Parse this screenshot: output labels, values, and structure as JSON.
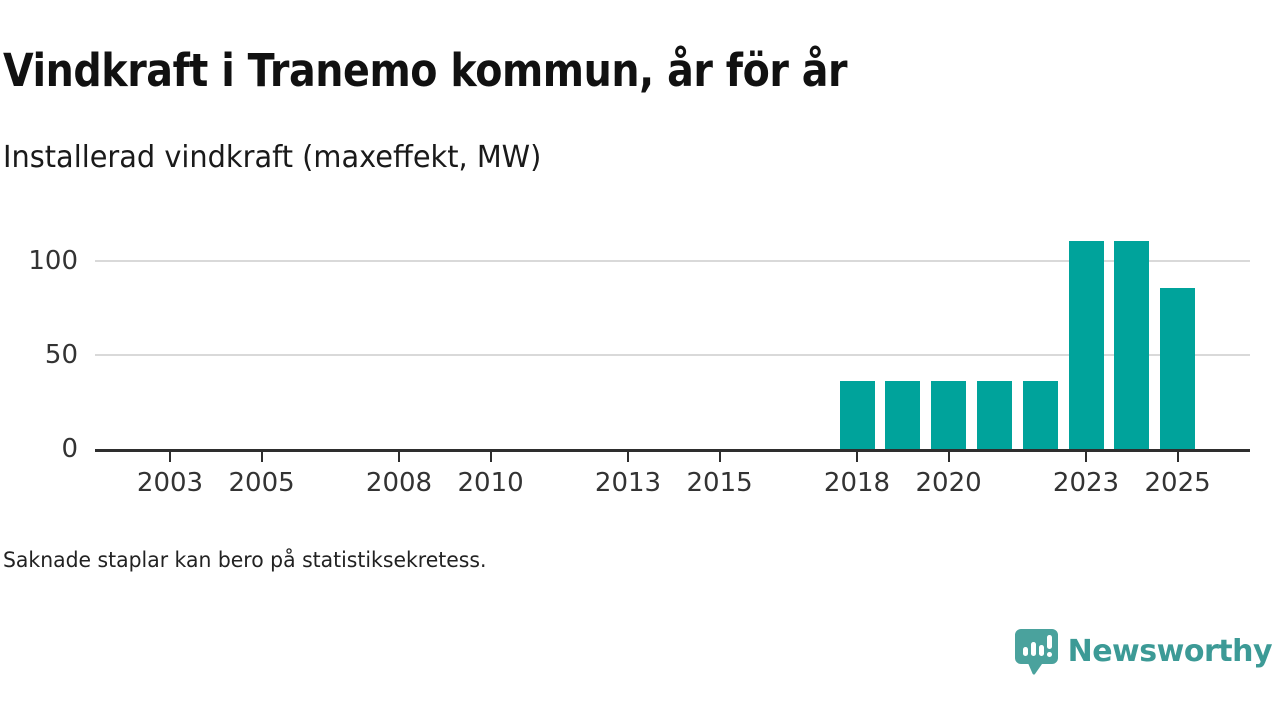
{
  "header": {
    "title": "Vindkraft i Tranemo kommun, år för år",
    "subtitle": "Installerad vindkraft (maxeffekt, MW)"
  },
  "footer": {
    "note": "Saknade staplar kan bero på statistiksekretess.",
    "brand": "Newsworthy"
  },
  "colors": {
    "bar": "#00a39b",
    "axis": "#2e2e2e",
    "grid": "#d9d9d9",
    "logo_bubble": "#4aa29d",
    "logo_text": "#3c9a96"
  },
  "chart_data": {
    "type": "bar",
    "title": "Vindkraft i Tranemo kommun, år för år",
    "subtitle": "Installerad vindkraft (maxeffekt, MW)",
    "ylabel": "Installerad vindkraft (maxeffekt, MW)",
    "unit": "MW",
    "x": [
      2018,
      2019,
      2020,
      2021,
      2022,
      2023,
      2024,
      2025
    ],
    "values": [
      36,
      36,
      36,
      36,
      36,
      111,
      111,
      86
    ],
    "x_domain": [
      2002,
      2026
    ],
    "x_ticks": [
      2003,
      2005,
      2008,
      2010,
      2013,
      2015,
      2018,
      2020,
      2023,
      2025
    ],
    "y_ticks": [
      0,
      50,
      100
    ],
    "ylim": [
      0,
      118
    ],
    "grid": "horizontal-only",
    "legend": "none",
    "note": "Saknade staplar kan bero på statistiksekretess."
  }
}
